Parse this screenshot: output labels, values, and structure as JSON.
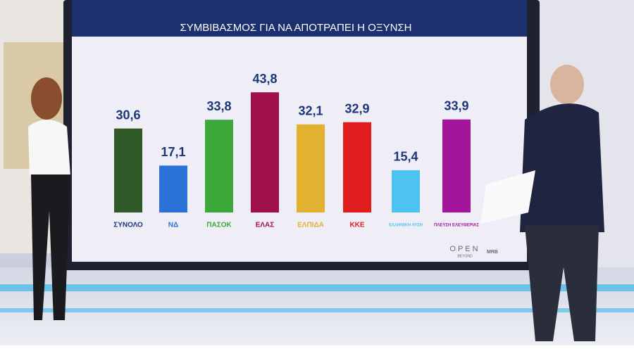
{
  "chart_data": {
    "type": "bar",
    "title": "ΣΥΜΒΙΒΑΣΜΟΣ ΓΙΑ ΝΑ ΑΠΟΤΡΑΠΕΙ Η ΟΞΥΝΣΗ",
    "categories": [
      "ΣΥΝΟΛΟ",
      "ΝΔ",
      "ΠΑΣΟΚ",
      "ΕΛΑΣ",
      "ΕΛΠΙΔΑ",
      "ΚΚΕ",
      "ΕΛΛΗΝΙΚΗ ΛΥΣΗ",
      "ΠΛΕΥΣΗ ΕΛΕΥΘΕΡΙΑΣ"
    ],
    "values": [
      30.6,
      17.1,
      33.8,
      43.8,
      32.1,
      32.9,
      15.4,
      33.9
    ],
    "value_labels": [
      "30,6",
      "17,1",
      "33,8",
      "43,8",
      "32,1",
      "32,9",
      "15,4",
      "33,9"
    ],
    "colors": [
      "#2f5a27",
      "#2b72d9",
      "#3da93a",
      "#a0114a",
      "#e2b12f",
      "#e01c1c",
      "#4fc3f0",
      "#a3169b"
    ]
  },
  "branding": {
    "channel": "OPEN",
    "channel_sub": "BEYOND",
    "pollster": "MRB"
  }
}
